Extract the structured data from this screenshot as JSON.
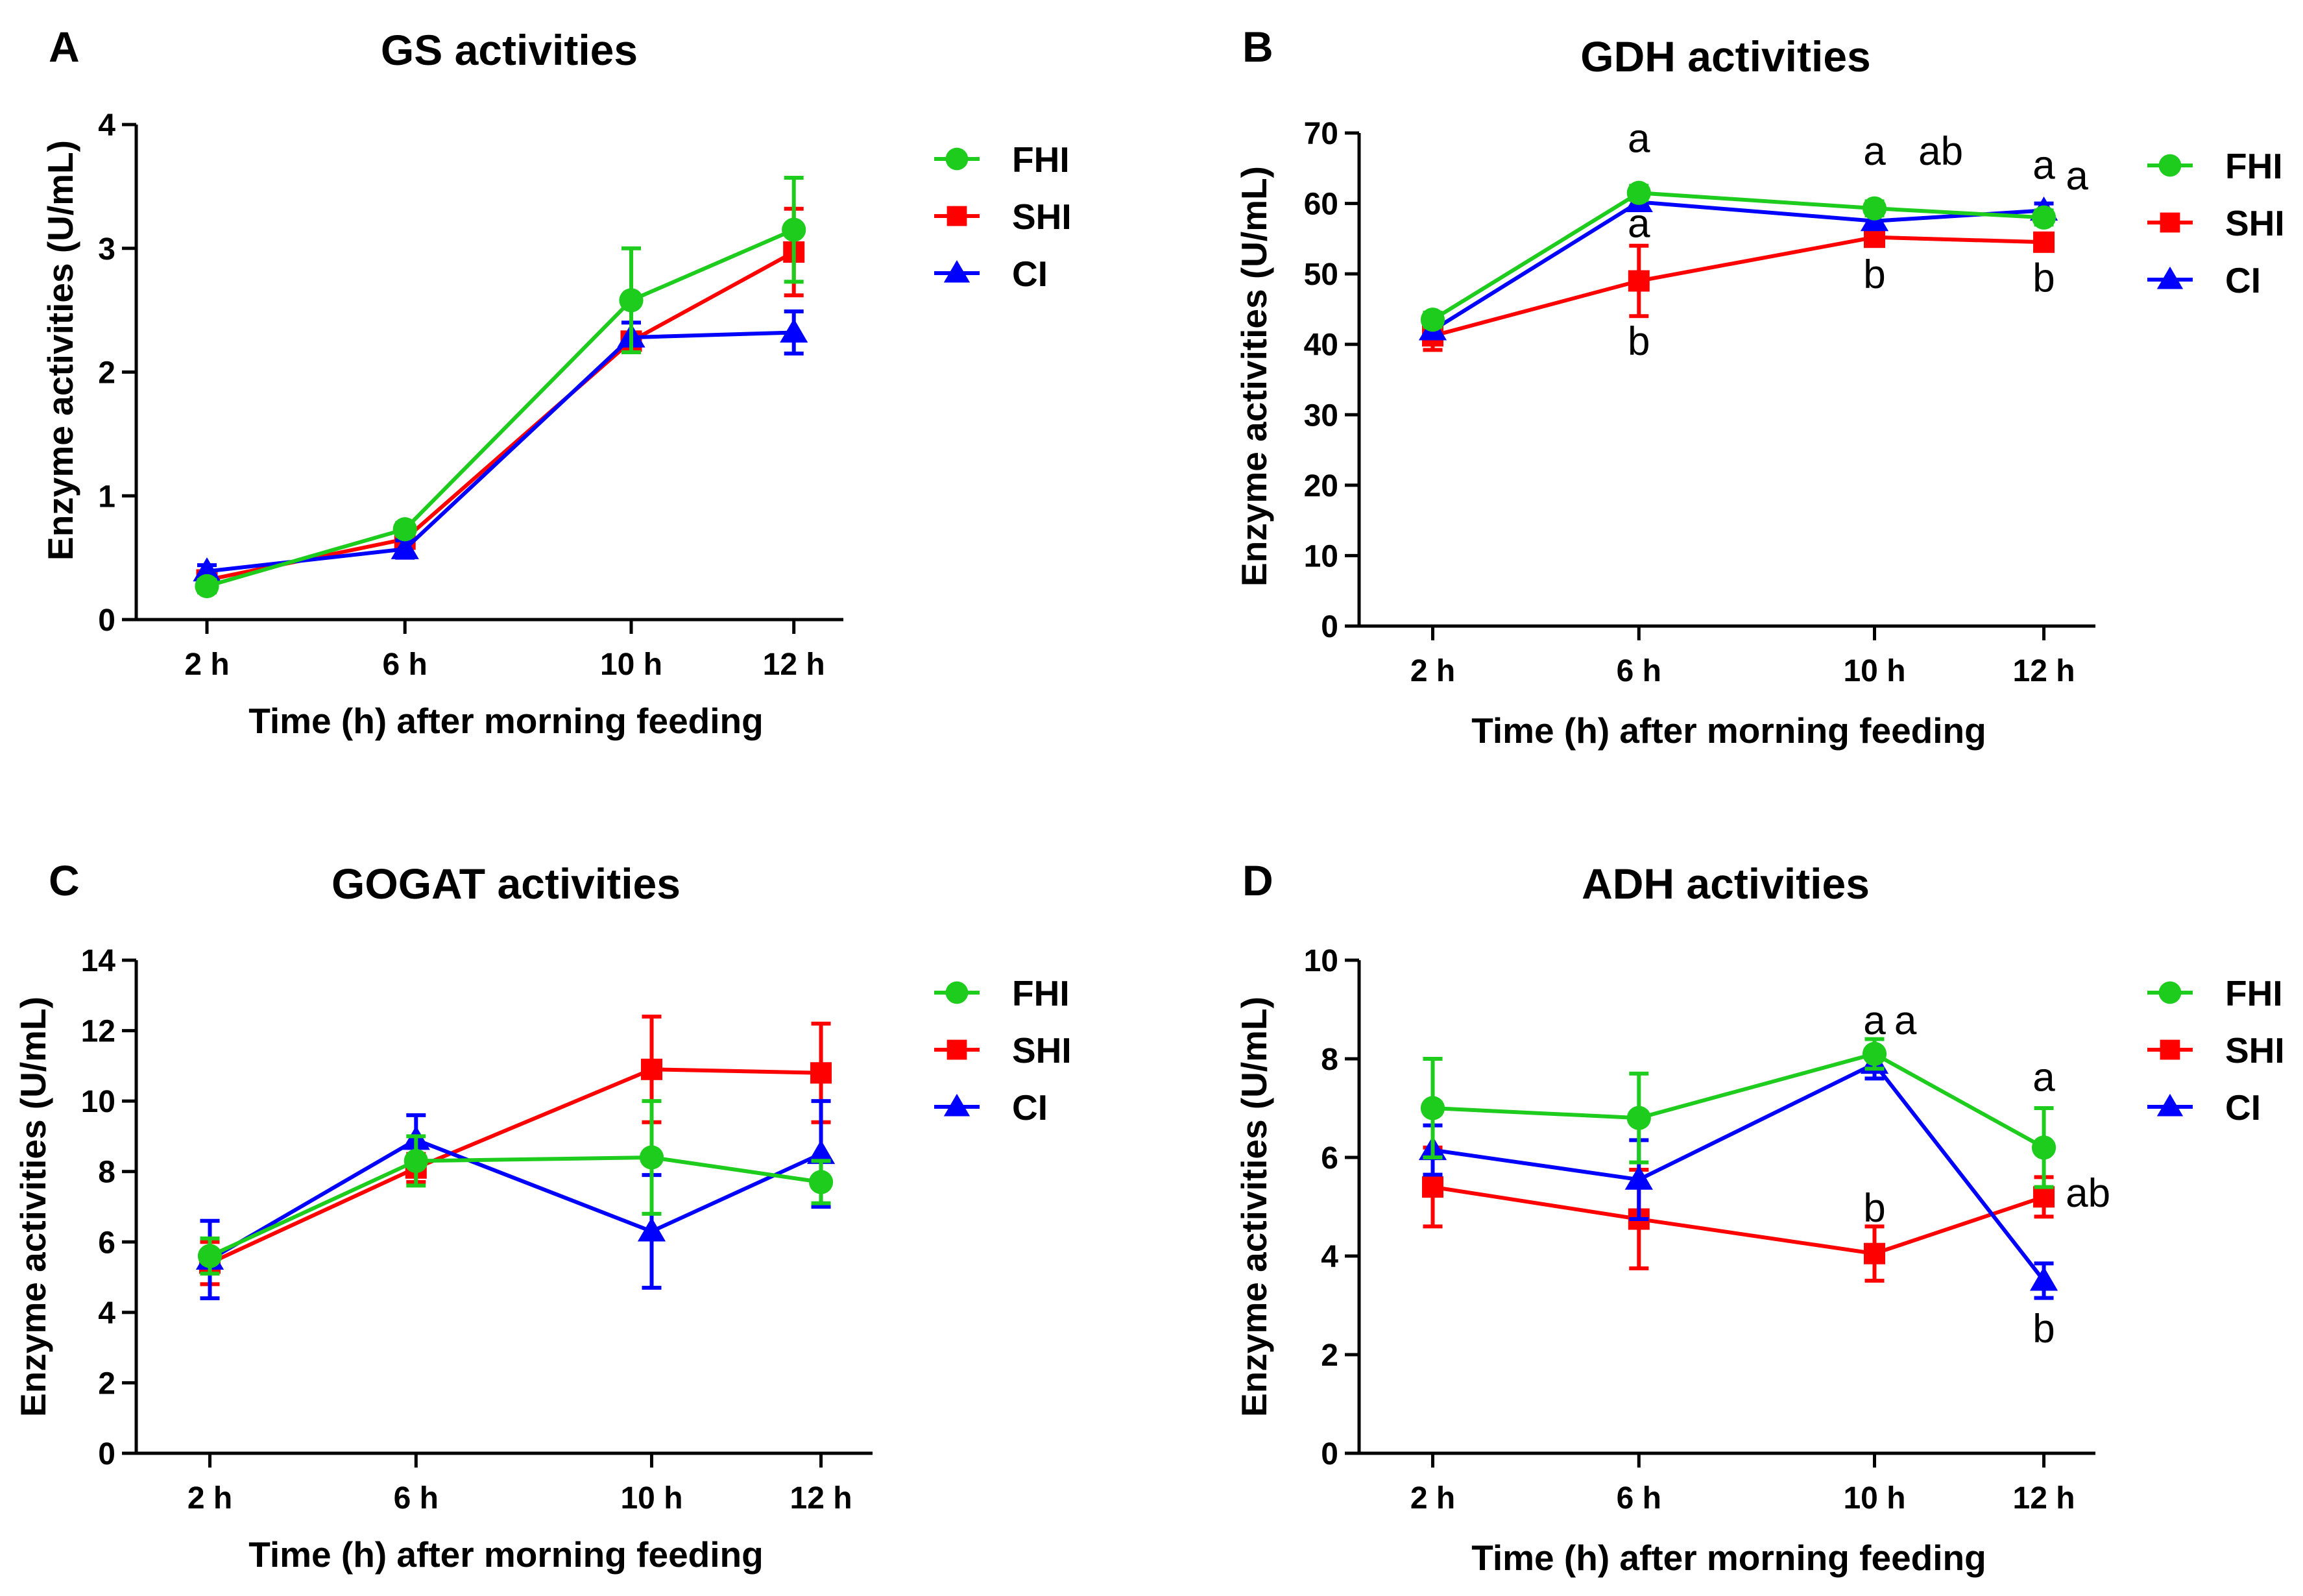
{
  "colors": {
    "FHI": "#1ecc1e",
    "SHI": "#ff0000",
    "CI": "#0000ff",
    "axis": "#000000"
  },
  "chart_data": [
    {
      "type": "line",
      "panel": "A",
      "title": "GS activities",
      "xlabel": "Time (h) after morning feeding",
      "ylabel": "Enzyme activities (U/mL)",
      "categories": [
        "2 h",
        "6 h",
        "10 h",
        "12 h"
      ],
      "ylim": [
        0,
        4
      ],
      "yticks": [
        0,
        1,
        2,
        3,
        4
      ],
      "legend_position": "right",
      "series": [
        {
          "name": "FHI",
          "marker": "circle",
          "values": [
            0.27,
            0.73,
            2.58,
            3.15
          ],
          "errors": [
            0.05,
            0.05,
            0.42,
            0.42
          ]
        },
        {
          "name": "SHI",
          "marker": "square",
          "values": [
            0.32,
            0.65,
            2.25,
            2.97
          ],
          "errors": [
            0.05,
            0.05,
            0.07,
            0.35
          ]
        },
        {
          "name": "CI",
          "marker": "triangle",
          "values": [
            0.39,
            0.57,
            2.28,
            2.32
          ],
          "errors": [
            0.05,
            0.07,
            0.12,
            0.17
          ]
        }
      ],
      "annotations": []
    },
    {
      "type": "line",
      "panel": "B",
      "title": "GDH activities",
      "xlabel": "Time (h) after morning feeding",
      "ylabel": "Enzyme activities (U/mL)",
      "categories": [
        "2 h",
        "6 h",
        "10 h",
        "12 h"
      ],
      "ylim": [
        0,
        70
      ],
      "yticks": [
        0,
        10,
        20,
        30,
        40,
        50,
        60,
        70
      ],
      "legend_position": "right",
      "series": [
        {
          "name": "FHI",
          "marker": "circle",
          "values": [
            43.5,
            61.5,
            59.3,
            58.0
          ],
          "errors": [
            1.0,
            1.0,
            1.0,
            1.0
          ]
        },
        {
          "name": "SHI",
          "marker": "square",
          "values": [
            41.2,
            49.0,
            55.2,
            54.5
          ],
          "errors": [
            2.0,
            5.0,
            1.0,
            1.0
          ]
        },
        {
          "name": "CI",
          "marker": "triangle",
          "values": [
            42.0,
            60.2,
            57.5,
            59.0
          ],
          "errors": [
            1.0,
            1.0,
            1.0,
            1.0
          ]
        }
      ],
      "annotations": [
        {
          "text": "a",
          "x": "6 h",
          "y": 67.3
        },
        {
          "text": "a",
          "x": "6 h",
          "y": 55.2
        },
        {
          "text": "b",
          "x": "6 h",
          "y": 38.5
        },
        {
          "text": "a",
          "x": "10 h",
          "y": 65.5
        },
        {
          "text": "ab",
          "x": "10 h",
          "y": 65.5,
          "dx": 0.3
        },
        {
          "text": "b",
          "x": "10 h",
          "y": 48.0
        },
        {
          "text": "a",
          "x": "12 h",
          "y": 63.5
        },
        {
          "text": "a",
          "x": "12 h",
          "y": 62.0,
          "dx": 0.15
        },
        {
          "text": "b",
          "x": "12 h",
          "y": 47.5
        }
      ]
    },
    {
      "type": "line",
      "panel": "C",
      "title": "GOGAT activities",
      "xlabel": "Time (h) after morning feeding",
      "ylabel": "Enzyme activities (U/mL)",
      "categories": [
        "2 h",
        "6 h",
        "10 h",
        "12 h"
      ],
      "ylim": [
        0,
        14
      ],
      "yticks": [
        0,
        2,
        4,
        6,
        8,
        10,
        12,
        14
      ],
      "legend_position": "right",
      "series": [
        {
          "name": "FHI",
          "marker": "circle",
          "values": [
            5.6,
            8.3,
            8.4,
            7.7
          ],
          "errors": [
            0.5,
            0.7,
            1.6,
            0.6
          ]
        },
        {
          "name": "SHI",
          "marker": "square",
          "values": [
            5.4,
            8.1,
            10.9,
            10.8
          ],
          "errors": [
            0.6,
            0.4,
            1.5,
            1.4
          ]
        },
        {
          "name": "CI",
          "marker": "triangle",
          "values": [
            5.5,
            8.9,
            6.3,
            8.5
          ],
          "errors": [
            1.1,
            0.7,
            1.6,
            1.5
          ]
        }
      ],
      "annotations": []
    },
    {
      "type": "line",
      "panel": "D",
      "title": "ADH activities",
      "xlabel": "Time (h) after morning feeding",
      "ylabel": "Enzyme activities (U/mL)",
      "categories": [
        "2 h",
        "6 h",
        "10 h",
        "12 h"
      ],
      "ylim": [
        0,
        10
      ],
      "yticks": [
        0,
        2,
        4,
        6,
        8,
        10
      ],
      "legend_position": "right",
      "series": [
        {
          "name": "FHI",
          "marker": "circle",
          "values": [
            7.0,
            6.8,
            8.1,
            6.2
          ],
          "errors": [
            1.0,
            0.9,
            0.3,
            0.8
          ]
        },
        {
          "name": "SHI",
          "marker": "square",
          "values": [
            5.4,
            4.75,
            4.05,
            5.2
          ],
          "errors": [
            0.8,
            1.0,
            0.55,
            0.4
          ]
        },
        {
          "name": "CI",
          "marker": "triangle",
          "values": [
            6.15,
            5.55,
            7.9,
            3.5
          ],
          "errors": [
            0.5,
            0.8,
            0.3,
            0.35
          ]
        }
      ],
      "annotations": [
        {
          "text": "a",
          "x": "10 h",
          "y": 8.5
        },
        {
          "text": "a",
          "x": "10 h",
          "y": 8.5,
          "dx": 0.14
        },
        {
          "text": "b",
          "x": "10 h",
          "y": 4.7
        },
        {
          "text": "a",
          "x": "12 h",
          "y": 7.35
        },
        {
          "text": "ab",
          "x": "12 h",
          "y": 5.0,
          "dx": 0.2
        },
        {
          "text": "b",
          "x": "12 h",
          "y": 2.25
        }
      ]
    }
  ]
}
